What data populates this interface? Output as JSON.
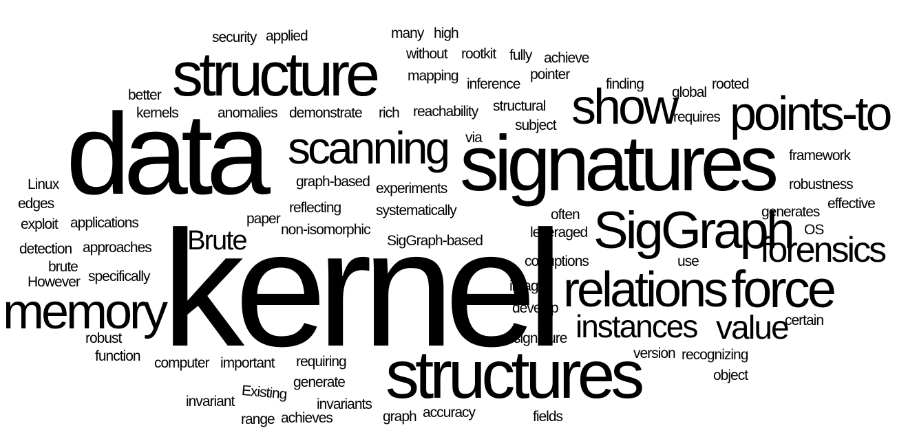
{
  "words": [
    {
      "text": "kernel"
    },
    {
      "text": "data"
    },
    {
      "text": "signatures"
    },
    {
      "text": "structure"
    },
    {
      "text": "structures"
    },
    {
      "text": "scanning"
    },
    {
      "text": "show"
    },
    {
      "text": "points-to"
    },
    {
      "text": "SigGraph"
    },
    {
      "text": "relations"
    },
    {
      "text": "force"
    },
    {
      "text": "memory"
    },
    {
      "text": "forensics"
    },
    {
      "text": "instances"
    },
    {
      "text": "value"
    },
    {
      "text": "Brute"
    },
    {
      "text": "security"
    },
    {
      "text": "applied"
    },
    {
      "text": "many"
    },
    {
      "text": "high"
    },
    {
      "text": "without"
    },
    {
      "text": "rootkit"
    },
    {
      "text": "fully"
    },
    {
      "text": "achieve"
    },
    {
      "text": "mapping"
    },
    {
      "text": "pointer"
    },
    {
      "text": "inference"
    },
    {
      "text": "finding"
    },
    {
      "text": "rooted"
    },
    {
      "text": "global"
    },
    {
      "text": "better"
    },
    {
      "text": "kernels"
    },
    {
      "text": "anomalies"
    },
    {
      "text": "demonstrate"
    },
    {
      "text": "rich"
    },
    {
      "text": "reachability"
    },
    {
      "text": "structural"
    },
    {
      "text": "subject"
    },
    {
      "text": "requires"
    },
    {
      "text": "via"
    },
    {
      "text": "framework"
    },
    {
      "text": "Linux"
    },
    {
      "text": "edges"
    },
    {
      "text": "graph-based"
    },
    {
      "text": "experiments"
    },
    {
      "text": "robustness"
    },
    {
      "text": "effective"
    },
    {
      "text": "reflecting"
    },
    {
      "text": "systematically"
    },
    {
      "text": "generates"
    },
    {
      "text": "exploit"
    },
    {
      "text": "applications"
    },
    {
      "text": "paper"
    },
    {
      "text": "non-isomorphic"
    },
    {
      "text": "often"
    },
    {
      "text": "OS"
    },
    {
      "text": "leveraged"
    },
    {
      "text": "detection"
    },
    {
      "text": "approaches"
    },
    {
      "text": "SigGraph-based"
    },
    {
      "text": "brute"
    },
    {
      "text": "corruptions"
    },
    {
      "text": "use"
    },
    {
      "text": "However"
    },
    {
      "text": "specifically"
    },
    {
      "text": "images"
    },
    {
      "text": "develop"
    },
    {
      "text": "certain"
    },
    {
      "text": "robust"
    },
    {
      "text": "signature"
    },
    {
      "text": "function"
    },
    {
      "text": "computer"
    },
    {
      "text": "important"
    },
    {
      "text": "requiring"
    },
    {
      "text": "version"
    },
    {
      "text": "recognizing"
    },
    {
      "text": "Existing"
    },
    {
      "text": "generate"
    },
    {
      "text": "object"
    },
    {
      "text": "invariant"
    },
    {
      "text": "invariants"
    },
    {
      "text": "accuracy"
    },
    {
      "text": "range"
    },
    {
      "text": "achieves"
    },
    {
      "text": "graph"
    },
    {
      "text": "fields"
    }
  ]
}
